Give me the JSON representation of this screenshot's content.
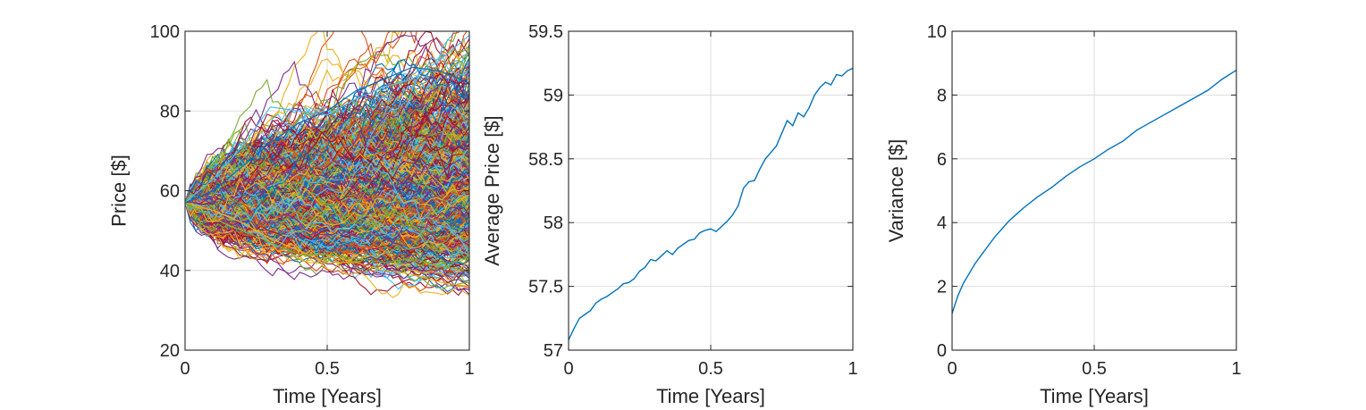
{
  "figure": {
    "background": "#ffffff",
    "axis_color": "#262626",
    "grid_color": "#dcdcdc",
    "line_color": "#0072bd",
    "palette": [
      "#0072bd",
      "#d95319",
      "#edb120",
      "#7e2f8e",
      "#77ac30",
      "#4dbeee",
      "#a2142f"
    ]
  },
  "chart_data": [
    {
      "type": "line",
      "title": "",
      "xlabel": "Time [Years]",
      "ylabel": "Price [$]",
      "xlim": [
        0,
        1
      ],
      "ylim": [
        20,
        100
      ],
      "xticks": [
        0,
        0.5,
        1
      ],
      "xtick_labels": [
        "0",
        "0.5",
        "1"
      ],
      "yticks": [
        20,
        40,
        60,
        80,
        100
      ],
      "ytick_labels": [
        "20",
        "40",
        "60",
        "80",
        "100"
      ],
      "grid": true,
      "series_count": 1000,
      "start_value": 57,
      "series": [
        {
          "x": [
            0,
            0.1,
            0.2,
            0.3,
            0.4,
            0.5,
            0.6,
            0.7,
            0.8,
            0.9,
            1.0
          ],
          "values": [
            57,
            63,
            71,
            81,
            80,
            79,
            83,
            86,
            88,
            93,
            99
          ]
        },
        {
          "x": [
            0,
            0.1,
            0.2,
            0.3,
            0.4,
            0.5,
            0.6,
            0.7,
            0.8,
            0.9,
            1.0
          ],
          "values": [
            57,
            60,
            66,
            72,
            77,
            80,
            85,
            88,
            91,
            90,
            87
          ]
        },
        {
          "x": [
            0,
            0.1,
            0.2,
            0.3,
            0.4,
            0.5,
            0.6,
            0.7,
            0.8,
            0.9,
            1.0
          ],
          "values": [
            57,
            55,
            52,
            48,
            45,
            42,
            42,
            40,
            39,
            37,
            36
          ]
        },
        {
          "x": [
            0,
            0.1,
            0.2,
            0.3,
            0.4,
            0.5,
            0.6,
            0.7,
            0.8,
            0.9,
            1.0
          ],
          "values": [
            57,
            53,
            50,
            47,
            44,
            44,
            43,
            42,
            43,
            41,
            40
          ]
        }
      ]
    },
    {
      "type": "line",
      "title": "",
      "xlabel": "Time [Years]",
      "ylabel": "Average Price [$]",
      "xlim": [
        0,
        1
      ],
      "ylim": [
        57,
        59.5
      ],
      "xticks": [
        0,
        0.5,
        1
      ],
      "xtick_labels": [
        "0",
        "0.5",
        "1"
      ],
      "yticks": [
        57,
        57.5,
        58,
        58.5,
        59,
        59.5
      ],
      "ytick_labels": [
        "57",
        "57.5",
        "58",
        "58.5",
        "59",
        "59.5"
      ],
      "grid": true,
      "x": [
        0,
        0.0192,
        0.0385,
        0.0577,
        0.0769,
        0.0962,
        0.1154,
        0.1346,
        0.1538,
        0.1731,
        0.1923,
        0.2115,
        0.2308,
        0.25,
        0.2692,
        0.2885,
        0.3077,
        0.3269,
        0.3462,
        0.3654,
        0.3846,
        0.4038,
        0.4231,
        0.4423,
        0.4615,
        0.4808,
        0.5,
        0.5192,
        0.5385,
        0.5577,
        0.5769,
        0.5962,
        0.6154,
        0.6346,
        0.6538,
        0.6731,
        0.6923,
        0.7115,
        0.7308,
        0.75,
        0.7692,
        0.7885,
        0.8077,
        0.8269,
        0.8462,
        0.8654,
        0.8846,
        0.9038,
        0.9231,
        0.9423,
        0.9615,
        0.9808,
        1.0
      ],
      "values": [
        57.08,
        57.17,
        57.25,
        57.28,
        57.31,
        57.37,
        57.4,
        57.42,
        57.45,
        57.48,
        57.52,
        57.53,
        57.56,
        57.62,
        57.65,
        57.71,
        57.7,
        57.74,
        57.78,
        57.75,
        57.8,
        57.83,
        57.86,
        57.87,
        57.92,
        57.94,
        57.95,
        57.93,
        57.97,
        58.01,
        58.06,
        58.13,
        58.27,
        58.32,
        58.33,
        58.42,
        58.5,
        58.55,
        58.6,
        58.7,
        58.8,
        58.76,
        58.86,
        58.83,
        58.9,
        59.0,
        59.06,
        59.1,
        59.08,
        59.16,
        59.15,
        59.19,
        59.21
      ]
    },
    {
      "type": "line",
      "title": "",
      "xlabel": "Time [Years]",
      "ylabel": "Variance [$]",
      "xlim": [
        0,
        1
      ],
      "ylim": [
        0,
        10
      ],
      "xticks": [
        0,
        0.5,
        1
      ],
      "xtick_labels": [
        "0",
        "0.5",
        "1"
      ],
      "yticks": [
        0,
        2,
        4,
        6,
        8,
        10
      ],
      "ytick_labels": [
        "0",
        "2",
        "4",
        "6",
        "8",
        "10"
      ],
      "grid": true,
      "x": [
        0,
        0.02,
        0.04,
        0.06,
        0.08,
        0.1,
        0.125,
        0.15,
        0.175,
        0.2,
        0.225,
        0.25,
        0.3,
        0.35,
        0.4,
        0.45,
        0.5,
        0.55,
        0.6,
        0.65,
        0.7,
        0.75,
        0.8,
        0.85,
        0.9,
        0.95,
        1.0
      ],
      "values": [
        1.15,
        1.7,
        2.1,
        2.4,
        2.7,
        2.95,
        3.25,
        3.55,
        3.8,
        4.05,
        4.25,
        4.45,
        4.8,
        5.1,
        5.45,
        5.75,
        6.0,
        6.3,
        6.55,
        6.9,
        7.15,
        7.4,
        7.65,
        7.9,
        8.15,
        8.5,
        8.78
      ]
    }
  ]
}
